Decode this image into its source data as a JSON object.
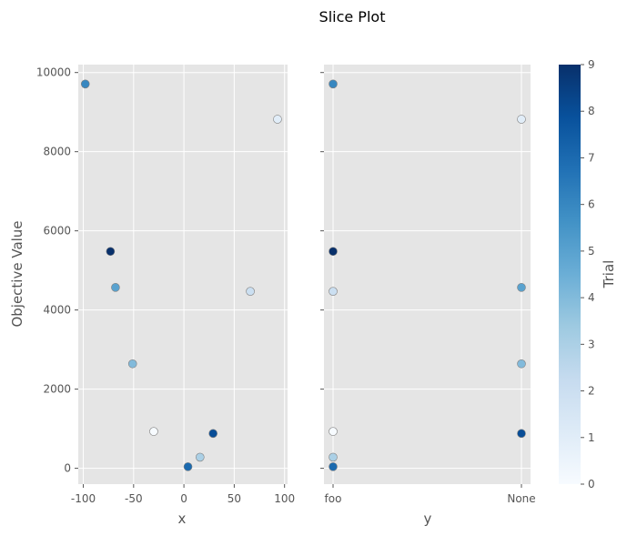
{
  "chart_data": {
    "title": "Slice Plot",
    "ylabel": "Objective Value",
    "colorbar": {
      "label": "Trial",
      "range": [
        0,
        9
      ],
      "ticks": [
        0,
        1,
        2,
        3,
        4,
        5,
        6,
        7,
        8,
        9
      ],
      "colormap": "Blues",
      "color_low": "#f7fbff",
      "color_high": "#08306b"
    },
    "style": {
      "background": "#e5e5e5",
      "grid": true,
      "grid_color": "#ffffff",
      "marker_edge": "#808080"
    },
    "panels": [
      {
        "type": "scatter",
        "xlabel": "x",
        "xlim": [
          -105,
          103
        ],
        "ylim": [
          -400,
          10200
        ],
        "x_ticks": [
          -100,
          -50,
          0,
          50,
          100
        ],
        "y_ticks": [
          0,
          2000,
          4000,
          6000,
          8000,
          10000
        ],
        "points": [
          {
            "trial": 0,
            "x": -30,
            "y": 930
          },
          {
            "trial": 1,
            "x": 93,
            "y": 8820
          },
          {
            "trial": 2,
            "x": 66,
            "y": 4470
          },
          {
            "trial": 3,
            "x": 16,
            "y": 280
          },
          {
            "trial": 4,
            "x": -51,
            "y": 2640
          },
          {
            "trial": 5,
            "x": -68,
            "y": 4570
          },
          {
            "trial": 6,
            "x": -98,
            "y": 9710
          },
          {
            "trial": 7,
            "x": 4,
            "y": 40
          },
          {
            "trial": 8,
            "x": 29,
            "y": 880
          },
          {
            "trial": 9,
            "x": -73,
            "y": 5480
          }
        ]
      },
      {
        "type": "scatter",
        "xlabel": "y",
        "categories": [
          "foo",
          "None"
        ],
        "ylim": [
          -400,
          10200
        ],
        "y_ticks": [
          0,
          2000,
          4000,
          6000,
          8000,
          10000
        ],
        "points": [
          {
            "trial": 0,
            "x": "foo",
            "y": 930
          },
          {
            "trial": 1,
            "x": "None",
            "y": 8820
          },
          {
            "trial": 2,
            "x": "foo",
            "y": 4470
          },
          {
            "trial": 3,
            "x": "foo",
            "y": 280
          },
          {
            "trial": 4,
            "x": "None",
            "y": 2640
          },
          {
            "trial": 5,
            "x": "None",
            "y": 4570
          },
          {
            "trial": 6,
            "x": "foo",
            "y": 9710
          },
          {
            "trial": 7,
            "x": "foo",
            "y": 40
          },
          {
            "trial": 8,
            "x": "None",
            "y": 880
          },
          {
            "trial": 9,
            "x": "foo",
            "y": 5480
          }
        ]
      }
    ]
  }
}
